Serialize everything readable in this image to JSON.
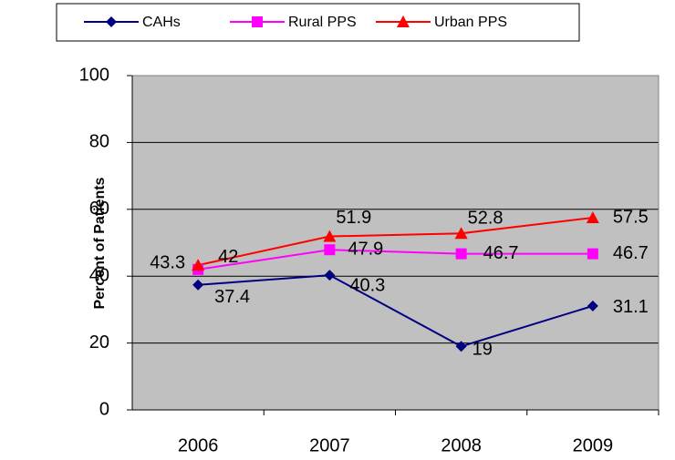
{
  "chart_data": {
    "type": "line",
    "categories": [
      "2006",
      "2007",
      "2008",
      "2009"
    ],
    "series": [
      {
        "name": "CAHs",
        "color": "#000080",
        "marker": "diamond",
        "values": [
          37.4,
          40.3,
          19,
          31.1
        ]
      },
      {
        "name": "Rural PPS",
        "color": "#ff00ff",
        "marker": "square",
        "values": [
          42,
          47.9,
          46.7,
          46.7
        ]
      },
      {
        "name": "Urban PPS",
        "color": "#ff0000",
        "marker": "triangle",
        "values": [
          43.3,
          51.9,
          52.8,
          57.5
        ]
      }
    ],
    "y_label": "Percent of Patients",
    "ylim": [
      0,
      100
    ],
    "yticks": [
      0,
      20,
      40,
      60,
      80,
      100
    ],
    "grid": true,
    "plot_background": "#c0c0c0",
    "legend": "top"
  }
}
